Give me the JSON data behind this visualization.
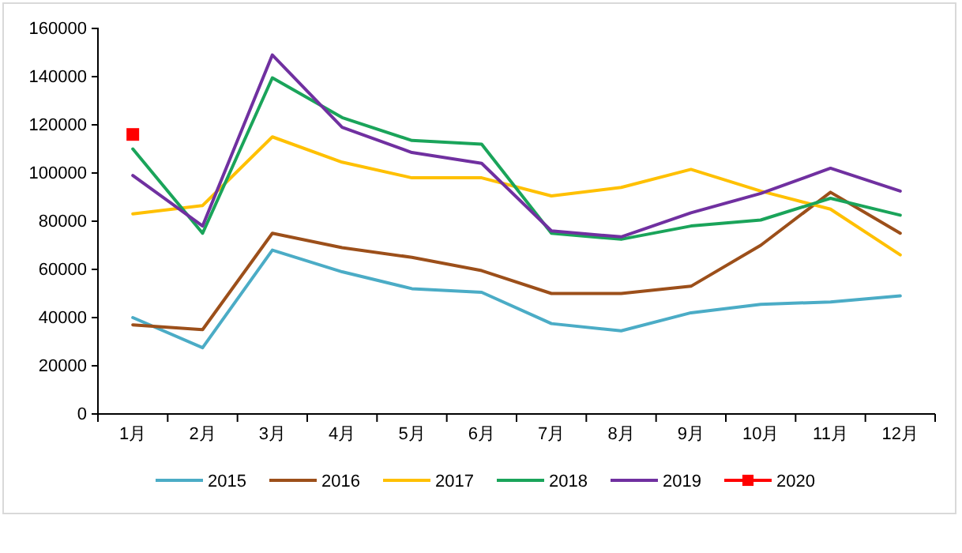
{
  "chart_data": {
    "type": "line",
    "categories": [
      "1月",
      "2月",
      "3月",
      "4月",
      "5月",
      "6月",
      "7月",
      "8月",
      "9月",
      "10月",
      "11月",
      "12月"
    ],
    "ylim": [
      0,
      160000
    ],
    "yticks": [
      0,
      20000,
      40000,
      60000,
      80000,
      100000,
      120000,
      140000,
      160000
    ],
    "grid": false,
    "legend": "bottom",
    "marker": "none",
    "line_style": "solid",
    "series": [
      {
        "name": "2015",
        "color": "#4bacc6",
        "values": [
          40000,
          27500,
          68000,
          59000,
          52000,
          50500,
          37500,
          34500,
          42000,
          45500,
          46500,
          49000
        ]
      },
      {
        "name": "2016",
        "color": "#9c4f1a",
        "values": [
          37000,
          35000,
          75000,
          69000,
          65000,
          59500,
          50000,
          50000,
          53000,
          70000,
          92000,
          75000
        ]
      },
      {
        "name": "2017",
        "color": "#ffc000",
        "values": [
          83000,
          86500,
          115000,
          104500,
          98000,
          98000,
          90500,
          94000,
          101500,
          92500,
          85000,
          66000
        ]
      },
      {
        "name": "2018",
        "color": "#1aa45a",
        "values": [
          110000,
          75000,
          139500,
          123000,
          113500,
          112000,
          75000,
          72500,
          78000,
          80500,
          89500,
          82500
        ]
      },
      {
        "name": "2019",
        "color": "#7030a0",
        "values": [
          99000,
          78000,
          149000,
          119000,
          108500,
          104000,
          76000,
          73500,
          83500,
          91500,
          102000,
          92500
        ]
      },
      {
        "name": "2020",
        "color": "#ff0000",
        "marker": "square",
        "values": [
          116000,
          null,
          null,
          null,
          null,
          null,
          null,
          null,
          null,
          null,
          null,
          null
        ]
      }
    ]
  }
}
